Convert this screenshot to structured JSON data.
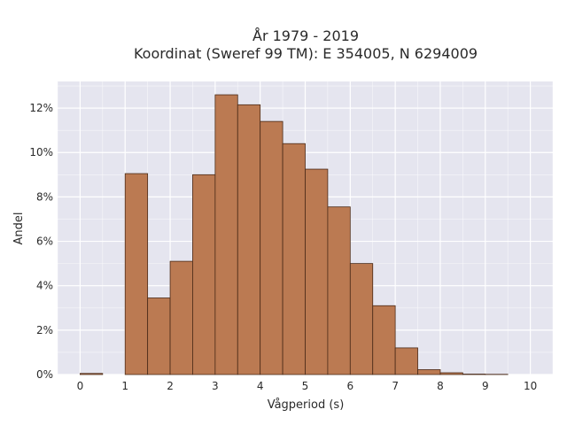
{
  "chart_data": {
    "type": "bar",
    "title_line1": "År 1979 - 2019",
    "title_line2": "Koordinat (Sweref 99 TM): E 354005, N 6294009",
    "xlabel": "Vågperiod (s)",
    "ylabel": "Andel",
    "bin_width": 0.5,
    "bins": [
      {
        "x0": 0.0,
        "x1": 0.5,
        "value": 0.05
      },
      {
        "x0": 0.5,
        "x1": 1.0,
        "value": 0.0
      },
      {
        "x0": 1.0,
        "x1": 1.5,
        "value": 9.05
      },
      {
        "x0": 1.5,
        "x1": 2.0,
        "value": 3.45
      },
      {
        "x0": 2.0,
        "x1": 2.5,
        "value": 5.1
      },
      {
        "x0": 2.5,
        "x1": 3.0,
        "value": 9.0
      },
      {
        "x0": 3.0,
        "x1": 3.5,
        "value": 12.6
      },
      {
        "x0": 3.5,
        "x1": 4.0,
        "value": 12.15
      },
      {
        "x0": 4.0,
        "x1": 4.5,
        "value": 11.4
      },
      {
        "x0": 4.5,
        "x1": 5.0,
        "value": 10.4
      },
      {
        "x0": 5.0,
        "x1": 5.5,
        "value": 9.25
      },
      {
        "x0": 5.5,
        "x1": 6.0,
        "value": 7.55
      },
      {
        "x0": 6.0,
        "x1": 6.5,
        "value": 5.0
      },
      {
        "x0": 6.5,
        "x1": 7.0,
        "value": 3.1
      },
      {
        "x0": 7.0,
        "x1": 7.5,
        "value": 1.2
      },
      {
        "x0": 7.5,
        "x1": 8.0,
        "value": 0.22
      },
      {
        "x0": 8.0,
        "x1": 8.5,
        "value": 0.08
      },
      {
        "x0": 8.5,
        "x1": 9.0,
        "value": 0.02
      },
      {
        "x0": 9.0,
        "x1": 9.5,
        "value": 0.01
      },
      {
        "x0": 9.5,
        "x1": 10.0,
        "value": 0.0
      }
    ],
    "xlim": [
      -0.5,
      10.5
    ],
    "ylim": [
      0,
      13.2
    ],
    "xticks": [
      0,
      1,
      2,
      3,
      4,
      5,
      6,
      7,
      8,
      9,
      10
    ],
    "yticks": [
      0,
      2,
      4,
      6,
      8,
      10,
      12
    ],
    "ytick_suffix": "%",
    "grid": true,
    "colors": {
      "bar_fill": "#bb7a52",
      "bar_stroke": "#4a2a18",
      "plot_bg": "#e5e5ef",
      "grid": "#ffffff"
    }
  }
}
